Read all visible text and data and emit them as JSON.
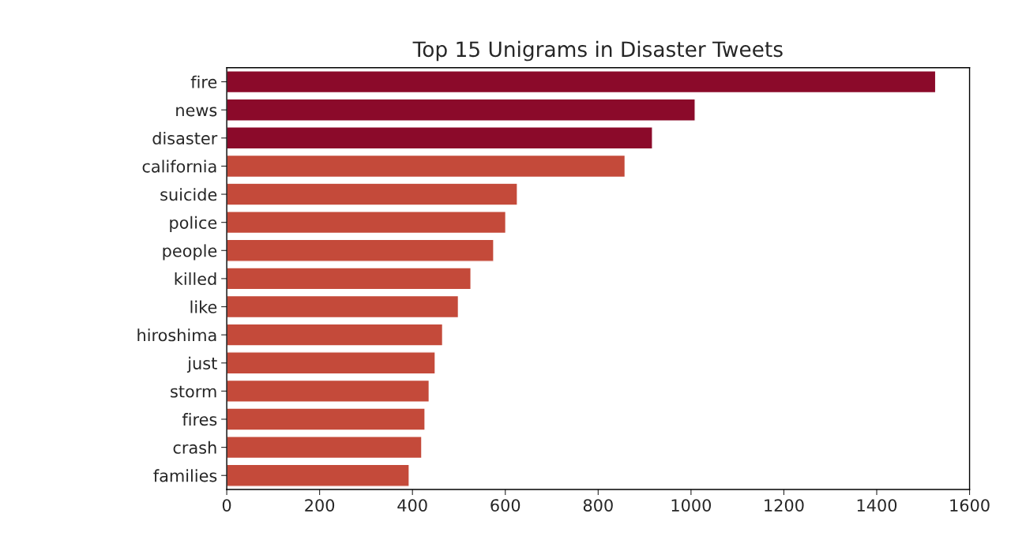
{
  "chart_data": {
    "type": "bar",
    "orientation": "horizontal",
    "title": "Top 15 Unigrams in Disaster Tweets",
    "categories": [
      "fire",
      "news",
      "disaster",
      "california",
      "suicide",
      "police",
      "people",
      "killed",
      "like",
      "hiroshima",
      "just",
      "storm",
      "fires",
      "crash",
      "families"
    ],
    "values": [
      1527,
      1009,
      917,
      858,
      626,
      601,
      575,
      526,
      499,
      465,
      449,
      436,
      427,
      420,
      393
    ],
    "colors": [
      "#8b0a2a",
      "#8b0a2a",
      "#8b0a2a",
      "#c44a3a",
      "#c44a3a",
      "#c44a3a",
      "#c44a3a",
      "#c44a3a",
      "#c44a3a",
      "#c44a3a",
      "#c44a3a",
      "#c44a3a",
      "#c44a3a",
      "#c44a3a",
      "#c44a3a"
    ],
    "xlim": [
      0,
      1600
    ],
    "xticks": [
      0,
      200,
      400,
      600,
      800,
      1000,
      1200,
      1400,
      1600
    ],
    "grid": false,
    "legend": false
  }
}
